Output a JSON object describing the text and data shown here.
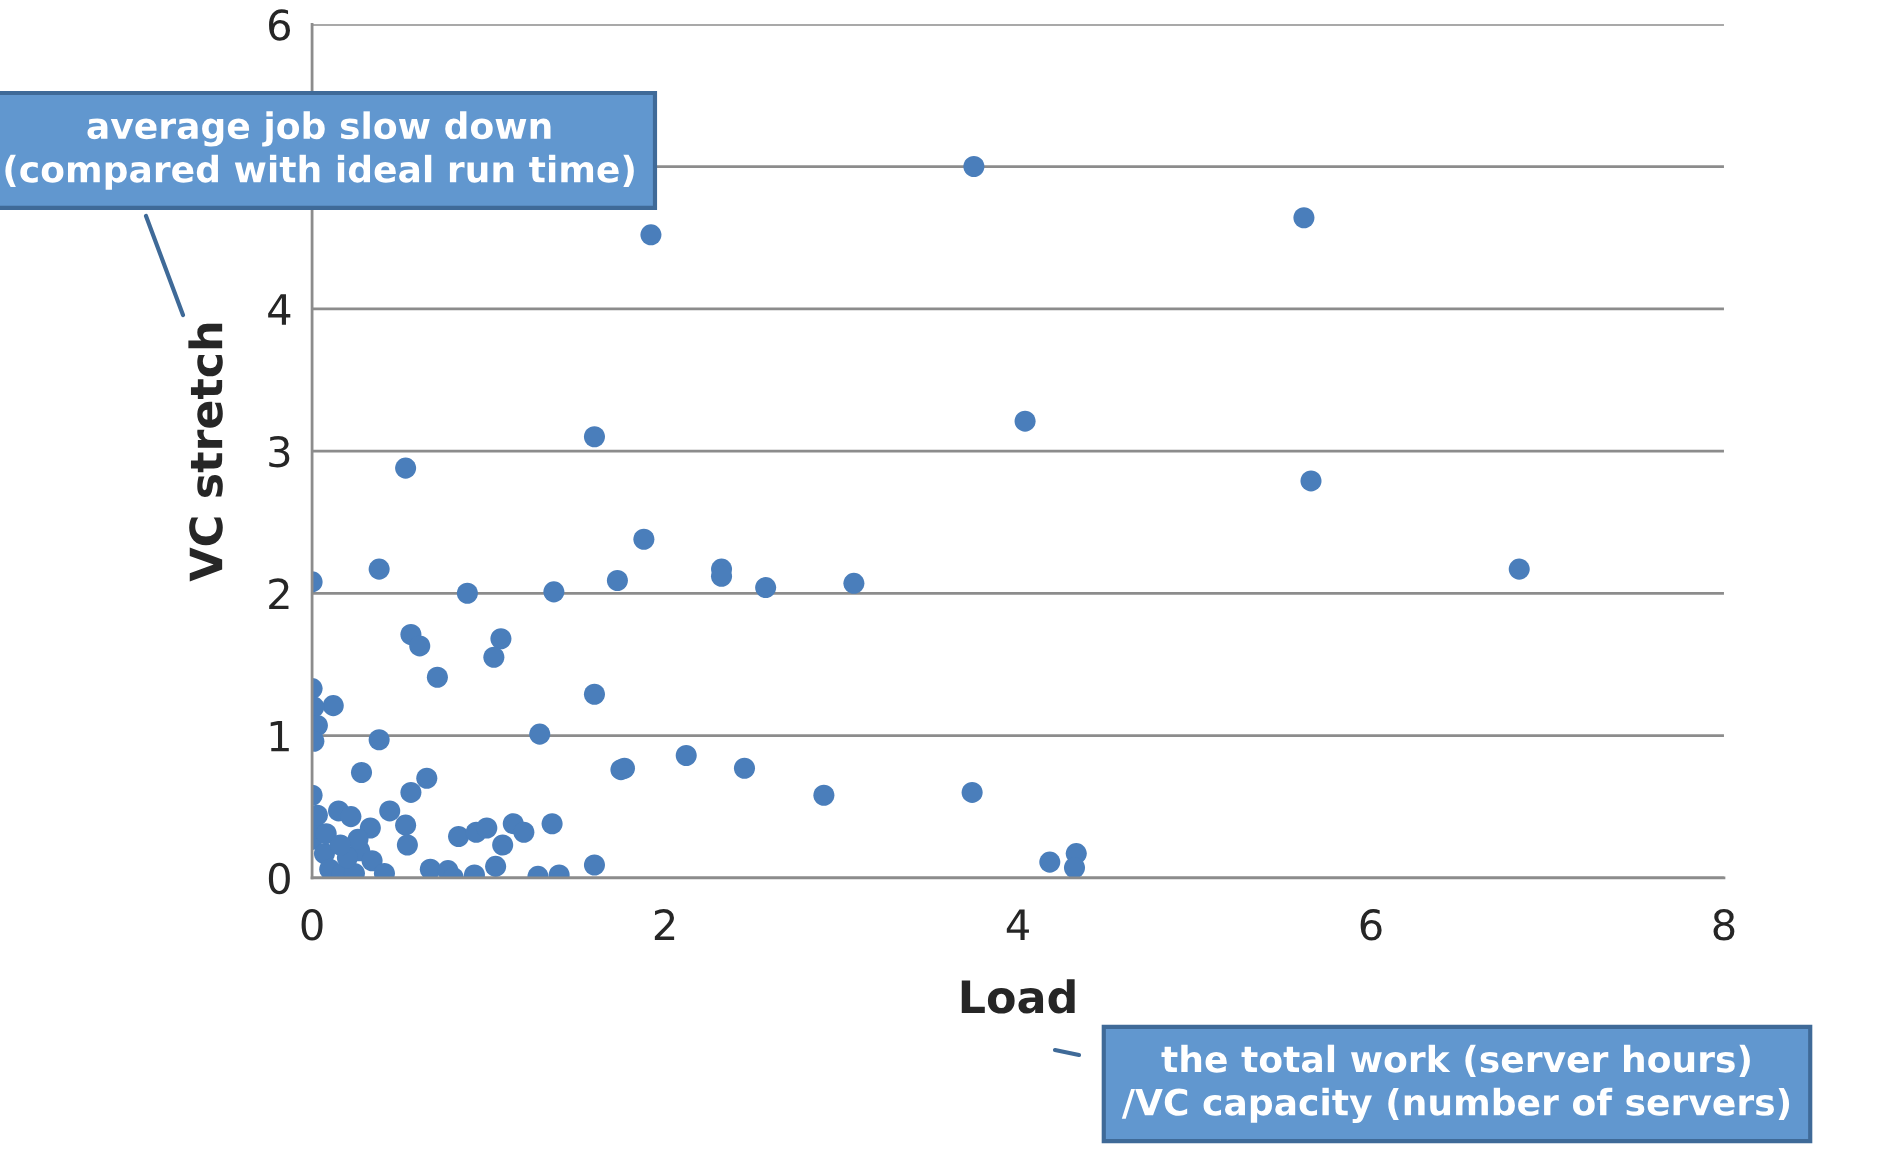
{
  "chart_data": {
    "type": "scatter",
    "xlabel": "Load",
    "ylabel": "VC stretch",
    "annotations": [
      "average job slow down\n(compared with ideal run time)",
      "the total work (server hours)\n/VC capacity (number of servers)"
    ],
    "xlim": [
      0,
      8
    ],
    "xticks": [
      0,
      2,
      4,
      6,
      8
    ],
    "ylim": [
      0,
      6
    ],
    "yticks": [
      0,
      1,
      2,
      3,
      4,
      {
        "value": 5,
        "label": null
      },
      6
    ],
    "grid": "y",
    "marker": "circle",
    "series": [
      {
        "color": "#4a7ebb",
        "x": [
          3.75,
          1.92,
          5.62,
          4.04,
          1.6,
          5.66,
          0.53,
          1.88,
          6.84,
          0.38,
          0,
          1.73,
          2.32,
          2.32,
          2.57,
          3.07,
          1.37,
          0.88,
          0.56,
          0.61,
          1.07,
          1.03,
          0.71,
          1.6,
          0,
          0.12,
          0.01,
          0.03,
          0.01,
          0.38,
          1.29,
          2.12,
          1.77,
          1.75,
          2.45,
          0.28,
          0.65,
          2.9,
          3.74,
          0.56,
          0,
          0.44,
          0.15,
          0.22,
          0.33,
          0.53,
          0.54,
          0.83,
          0.93,
          0.99,
          1.14,
          1.2,
          1.36,
          1.08,
          1.04,
          0.67,
          0.77,
          0.8,
          0.92,
          1.28,
          1.4,
          1.6,
          4.18,
          4.33,
          4.32,
          0,
          0.01,
          0.03,
          0.07,
          0.1,
          0.17,
          0.24,
          0.27,
          0.34,
          0.41,
          0.2,
          0.26,
          0.08,
          0.16
        ],
        "values": [
          5.0,
          4.52,
          4.64,
          3.21,
          3.1,
          2.79,
          2.88,
          2.38,
          2.17,
          2.17,
          2.08,
          2.09,
          2.17,
          2.12,
          2.04,
          2.07,
          2.01,
          2.0,
          1.71,
          1.63,
          1.68,
          1.55,
          1.41,
          1.29,
          1.33,
          1.21,
          1.2,
          1.07,
          0.96,
          0.97,
          1.01,
          0.86,
          0.77,
          0.76,
          0.77,
          0.74,
          0.7,
          0.58,
          0.6,
          0.6,
          0.58,
          0.47,
          0.47,
          0.43,
          0.35,
          0.37,
          0.23,
          0.29,
          0.32,
          0.35,
          0.38,
          0.32,
          0.38,
          0.23,
          0.08,
          0.06,
          0.05,
          0.0,
          0.02,
          0.01,
          0.02,
          0.09,
          0.11,
          0.17,
          0.07,
          0.27,
          0.35,
          0.44,
          0.17,
          0.06,
          0.03,
          0.03,
          0.19,
          0.12,
          0.03,
          0.14,
          0.27,
          0.31,
          0.23
        ]
      }
    ]
  }
}
